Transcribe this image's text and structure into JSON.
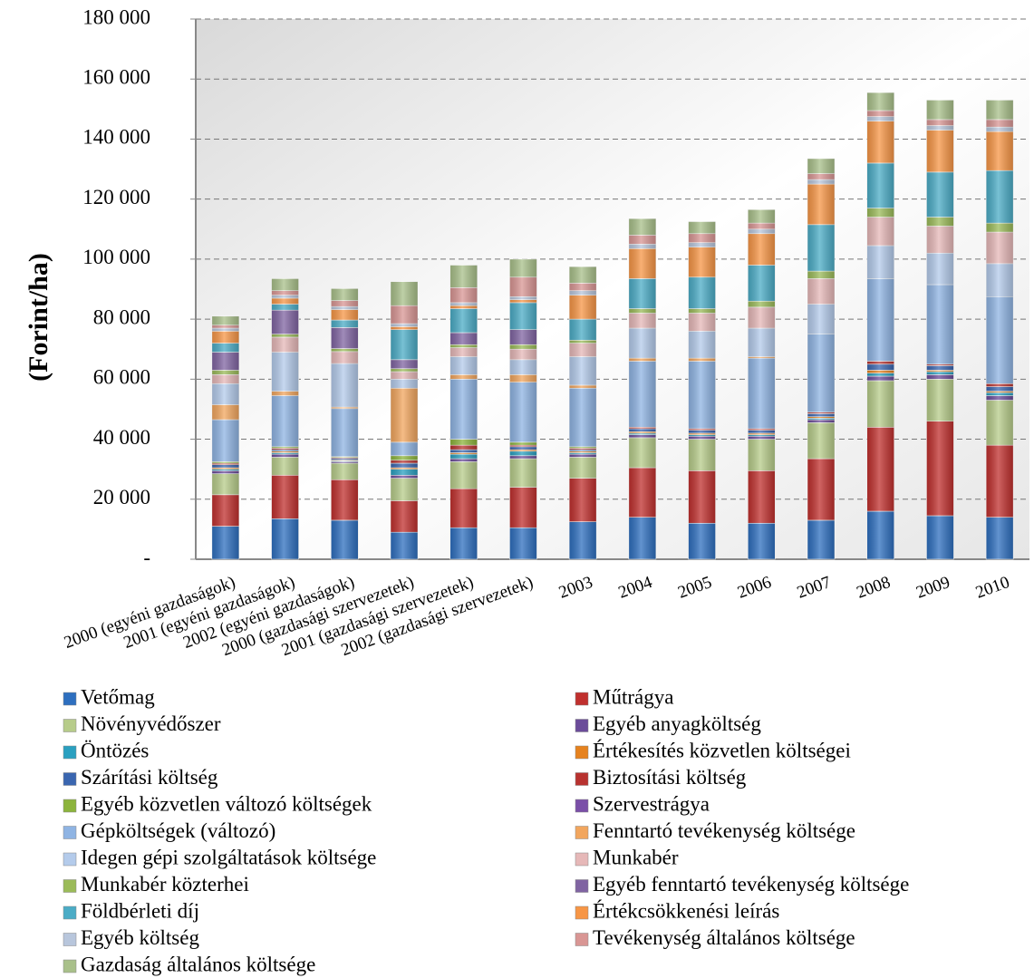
{
  "chart_data": {
    "type": "stacked_bar",
    "y_label": "(Forint/ha)",
    "categories": [
      "2000 (egyéni gazdaságok)",
      "2001 (egyéni gazdaságok)",
      "2002 (egyéni gazdaságok)",
      "2000 (gazdasági szervezetek)",
      "2001 (gazdasági szervezetek)",
      "2002 (gazdasági szervezetek)",
      "2003",
      "2004",
      "2005",
      "2006",
      "2007",
      "2008",
      "2009",
      "2010"
    ],
    "ylim": [
      0,
      180000
    ],
    "yticks": [
      {
        "value": 0,
        "label": "-"
      },
      {
        "value": 20000,
        "label": "20 000"
      },
      {
        "value": 40000,
        "label": "40 000"
      },
      {
        "value": 60000,
        "label": "60 000"
      },
      {
        "value": 80000,
        "label": "80 000"
      },
      {
        "value": 100000,
        "label": "100 000"
      },
      {
        "value": 120000,
        "label": "120 000"
      },
      {
        "value": 140000,
        "label": "140 000"
      },
      {
        "value": 160000,
        "label": "160 000"
      },
      {
        "value": 180000,
        "label": "180 000"
      }
    ],
    "grid": true,
    "legend": "bottom",
    "series": [
      {
        "name": "Vetőmag",
        "color": "#2e6fbf",
        "values": [
          11000,
          13500,
          13000,
          9000,
          10500,
          10500,
          12500,
          14000,
          12000,
          12000,
          13000,
          16000,
          14500,
          14000
        ]
      },
      {
        "name": "Műtrágya",
        "color": "#c0302e",
        "values": [
          10500,
          14500,
          13500,
          10500,
          13000,
          13500,
          14500,
          16500,
          17500,
          17500,
          20500,
          28000,
          31500,
          24000
        ]
      },
      {
        "name": "Növényvédőszer",
        "color": "#b7cc8a",
        "values": [
          7000,
          6000,
          5500,
          7500,
          9000,
          9500,
          7000,
          10000,
          10500,
          10500,
          12000,
          15500,
          14000,
          15000
        ]
      },
      {
        "name": "Egyéb anyagköltség",
        "color": "#6b4c9a",
        "values": [
          1000,
          1000,
          500,
          1000,
          1000,
          1000,
          1000,
          1000,
          1000,
          1000,
          1000,
          1500,
          1500,
          1500
        ]
      },
      {
        "name": "Öntözés",
        "color": "#2aa0c0",
        "values": [
          500,
          500,
          300,
          2000,
          1500,
          1500,
          500,
          500,
          500,
          500,
          500,
          1000,
          1000,
          1000
        ]
      },
      {
        "name": "Értékesítés közvetlen költségei",
        "color": "#e6821e",
        "values": [
          500,
          500,
          300,
          500,
          500,
          500,
          500,
          500,
          500,
          500,
          500,
          1000,
          500,
          500
        ]
      },
      {
        "name": "Szárítási költség",
        "color": "#3a66b0",
        "values": [
          1000,
          500,
          500,
          1500,
          1000,
          1000,
          500,
          1000,
          1000,
          1000,
          1000,
          2000,
          1500,
          1500
        ]
      },
      {
        "name": "Biztosítási költség",
        "color": "#b8322f",
        "values": [
          500,
          500,
          300,
          1000,
          1500,
          500,
          500,
          500,
          500,
          500,
          500,
          1000,
          500,
          1000
        ]
      },
      {
        "name": "Egyéb közvetlen változó költségek",
        "color": "#8cb43c",
        "values": [
          500,
          500,
          300,
          1500,
          2000,
          1000,
          500,
          0,
          0,
          0,
          0,
          0,
          0,
          0
        ]
      },
      {
        "name": "Szervestrágya",
        "color": "#7a4fa8",
        "values": [
          0,
          0,
          0,
          0,
          0,
          0,
          0,
          0,
          0,
          0,
          0,
          0,
          0,
          0
        ]
      },
      {
        "name": "Gépköltségek (változó)",
        "color": "#8fb4e3",
        "values": [
          14000,
          17000,
          16000,
          4500,
          20000,
          20000,
          19500,
          22000,
          22500,
          23500,
          26000,
          27500,
          26500,
          29000
        ]
      },
      {
        "name": "Fenntartó tevékenység költsége",
        "color": "#f2a65e",
        "values": [
          5000,
          1500,
          500,
          18000,
          1500,
          2500,
          1000,
          1000,
          1000,
          500,
          0,
          0,
          0,
          0
        ]
      },
      {
        "name": "Idegen gépi szolgáltatások költsége",
        "color": "#b4cbeb",
        "values": [
          7000,
          13000,
          14500,
          3000,
          6000,
          5000,
          9500,
          10000,
          9000,
          9500,
          10000,
          11000,
          10500,
          11000
        ]
      },
      {
        "name": "Munkabér",
        "color": "#e6b8b8",
        "values": [
          3000,
          5000,
          4000,
          2500,
          3000,
          3500,
          4500,
          5000,
          6000,
          7000,
          8500,
          9500,
          9000,
          10500
        ]
      },
      {
        "name": "Munkabér közterhei",
        "color": "#9bbb59",
        "values": [
          1500,
          1000,
          1000,
          1000,
          1000,
          1500,
          1000,
          1500,
          1500,
          2000,
          2500,
          3000,
          3000,
          3000
        ]
      },
      {
        "name": "Egyéb fenntartó tevékenység költsége",
        "color": "#8064a2",
        "values": [
          6000,
          8000,
          7000,
          3000,
          4000,
          5000,
          0,
          0,
          0,
          0,
          0,
          0,
          0,
          0
        ]
      },
      {
        "name": "Földbérleti díj",
        "color": "#4bacc6",
        "values": [
          3000,
          2000,
          2500,
          10000,
          8000,
          9000,
          7000,
          10000,
          10500,
          12000,
          15500,
          15000,
          15000,
          17500
        ]
      },
      {
        "name": "Értékcsökkenési leírás",
        "color": "#f79646",
        "values": [
          4000,
          2000,
          3500,
          1000,
          1000,
          1000,
          8000,
          10000,
          10000,
          10500,
          13500,
          14000,
          14000,
          13000
        ]
      },
      {
        "name": "Egyéb költség",
        "color": "#b8c6dc",
        "values": [
          1000,
          1000,
          1000,
          1000,
          1000,
          1000,
          1500,
          1500,
          1500,
          1500,
          1500,
          1500,
          1500,
          1500
        ]
      },
      {
        "name": "Tevékenység általános költsége",
        "color": "#d99694",
        "values": [
          1000,
          1500,
          2000,
          6000,
          5000,
          6500,
          2500,
          3000,
          3000,
          2000,
          2000,
          2000,
          2000,
          2500
        ]
      },
      {
        "name": "Gazdaság általános költsége",
        "color": "#a9c08a",
        "values": [
          3000,
          4000,
          4000,
          8000,
          7500,
          6000,
          5500,
          5500,
          4000,
          4500,
          5000,
          6000,
          6500,
          6500
        ]
      }
    ]
  }
}
